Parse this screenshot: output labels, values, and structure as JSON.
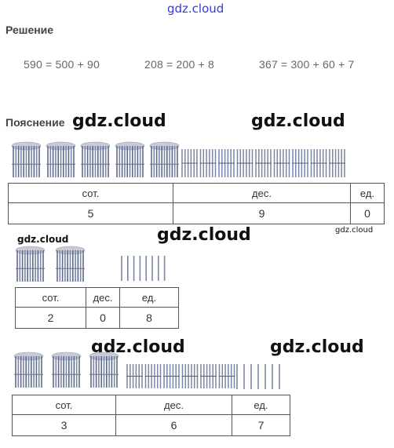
{
  "watermark": {
    "text": "gdz.cloud"
  },
  "solution": {
    "heading": "Решение",
    "equations": [
      "590 = 500 + 90",
      "208 = 200 + 8",
      "367 = 300 + 60 + 7"
    ]
  },
  "explanation": {
    "heading": "Пояснение"
  },
  "colors": {
    "stick": "#7b86a6",
    "stick_light": "#c8cbd5",
    "grid": "#555555",
    "watermark_top": "#3a3acd"
  },
  "blocks": [
    {
      "bundles": 5,
      "tens": 9,
      "ones": 0,
      "headers": [
        "сот.",
        "дес.",
        "ед."
      ],
      "values": [
        "5",
        "9",
        "0"
      ]
    },
    {
      "bundles": 2,
      "tens": 0,
      "ones": 8,
      "headers": [
        "сот.",
        "дес.",
        "ед."
      ],
      "values": [
        "2",
        "0",
        "8"
      ]
    },
    {
      "bundles": 3,
      "tens": 6,
      "ones": 7,
      "headers": [
        "сот.",
        "дес.",
        "ед."
      ],
      "values": [
        "3",
        "6",
        "7"
      ]
    }
  ]
}
